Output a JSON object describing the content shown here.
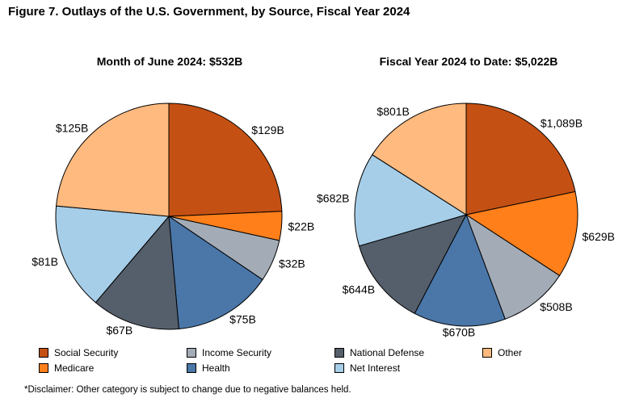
{
  "figure_title": "Figure 7. Outlays of the U.S. Government, by Source, Fiscal Year 2024",
  "colors": {
    "social_security": "#C55013",
    "medicare": "#FF7F1A",
    "income_security": "#A3ACB6",
    "health": "#4A76A8",
    "national_defense": "#555F6C",
    "net_interest": "#A6CEE8",
    "other": "#FFBA7F"
  },
  "legend": [
    {
      "key": "social_security",
      "label": "Social Security"
    },
    {
      "key": "medicare",
      "label": "Medicare"
    },
    {
      "key": "income_security",
      "label": "Income Security"
    },
    {
      "key": "health",
      "label": "Health"
    },
    {
      "key": "national_defense",
      "label": "National Defense"
    },
    {
      "key": "net_interest",
      "label": "Net Interest"
    },
    {
      "key": "other",
      "label": "Other"
    }
  ],
  "chart_data": [
    {
      "type": "pie",
      "title": "Month of June 2024: $532B",
      "slices": [
        {
          "key": "social_security",
          "label": "Social Security",
          "value": 129,
          "display": "$129B"
        },
        {
          "key": "medicare",
          "label": "Medicare",
          "value": 22,
          "display": "$22B"
        },
        {
          "key": "income_security",
          "label": "Income Security",
          "value": 32,
          "display": "$32B"
        },
        {
          "key": "health",
          "label": "Health",
          "value": 75,
          "display": "$75B"
        },
        {
          "key": "national_defense",
          "label": "National Defense",
          "value": 67,
          "display": "$67B"
        },
        {
          "key": "net_interest",
          "label": "Net Interest",
          "value": 81,
          "display": "$81B"
        },
        {
          "key": "other",
          "label": "Other",
          "value": 125,
          "display": "$125B"
        }
      ]
    },
    {
      "type": "pie",
      "title": "Fiscal Year 2024 to Date: $5,022B",
      "slices": [
        {
          "key": "social_security",
          "label": "Social Security",
          "value": 1089,
          "display": "$1,089B"
        },
        {
          "key": "medicare",
          "label": "Medicare",
          "value": 629,
          "display": "$629B"
        },
        {
          "key": "income_security",
          "label": "Income Security",
          "value": 508,
          "display": "$508B"
        },
        {
          "key": "health",
          "label": "Health",
          "value": 670,
          "display": "$670B"
        },
        {
          "key": "national_defense",
          "label": "National Defense",
          "value": 644,
          "display": "$644B"
        },
        {
          "key": "net_interest",
          "label": "Net Interest",
          "value": 682,
          "display": "$682B"
        },
        {
          "key": "other",
          "label": "Other",
          "value": 801,
          "display": "$801B"
        }
      ]
    }
  ],
  "disclaimer": "*Disclaimer: Other category is subject to change due to negative balances held."
}
